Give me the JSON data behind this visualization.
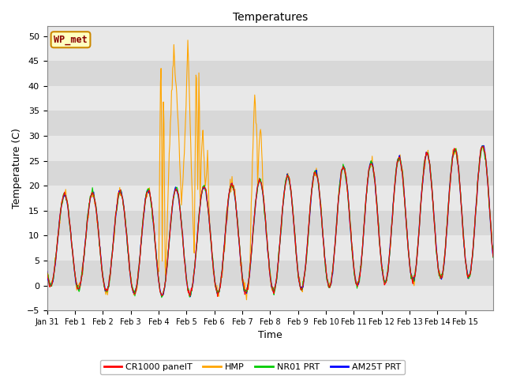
{
  "title": "Temperatures",
  "xlabel": "Time",
  "ylabel": "Temperature (C)",
  "ylim": [
    -5,
    52
  ],
  "yticks": [
    -5,
    0,
    5,
    10,
    15,
    20,
    25,
    30,
    35,
    40,
    45,
    50
  ],
  "n_days": 16,
  "xtick_labels": [
    "Jan 31",
    "Feb 1",
    "Feb 2",
    "Feb 3",
    "Feb 4",
    "Feb 5",
    "Feb 6",
    "Feb 7",
    "Feb 8",
    "Feb 9",
    "Feb 10",
    "Feb 11",
    "Feb 12",
    "Feb 13",
    "Feb 14",
    "Feb 15"
  ],
  "watermark": "WP_met",
  "colors": {
    "CR1000": "#ff0000",
    "HMP": "#ffa500",
    "NR01": "#00cc00",
    "AM25T": "#0000ff"
  },
  "legend_labels": [
    "CR1000 panelT",
    "HMP",
    "NR01 PRT",
    "AM25T PRT"
  ],
  "fig_bg": "#ffffff",
  "plot_bg": "#e8e8e8",
  "band_colors": [
    "#e8e8e8",
    "#d8d8d8"
  ],
  "title_fontsize": 10,
  "axis_fontsize": 9,
  "tick_fontsize": 8,
  "legend_fontsize": 8
}
